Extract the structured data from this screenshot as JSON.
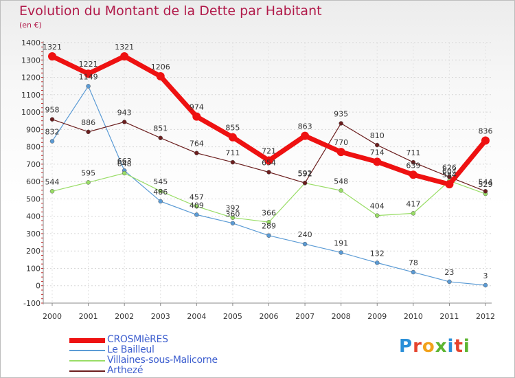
{
  "title": "Evolution du Montant de la Dette par Habitant",
  "unit_label": "(en €)",
  "logo_text": "Proxiti",
  "logo_colors": [
    "#2a8fd8",
    "#e5432d",
    "#f2a21b",
    "#5cb531",
    "#2a8fd8",
    "#e5432d",
    "#5cb531"
  ],
  "chart_data": {
    "type": "line",
    "title": "Evolution du Montant de la Dette par Habitant",
    "ylabel": "(en €)",
    "xlabel": "",
    "x": [
      "2000",
      "2001",
      "2002",
      "2003",
      "2004",
      "2005",
      "2006",
      "2007",
      "2008",
      "2009",
      "2010",
      "2011",
      "2012"
    ],
    "ylim": [
      -100,
      1400
    ],
    "yticks": [
      -100,
      0,
      100,
      200,
      300,
      400,
      500,
      600,
      700,
      800,
      900,
      1000,
      1100,
      1200,
      1300,
      1400
    ],
    "grid": true,
    "legend_position": "bottom-left",
    "series": [
      {
        "name": "CROSMIèRES",
        "color": "#ee1111",
        "width": 7,
        "values": [
          1321,
          1221,
          1321,
          1206,
          974,
          855,
          721,
          863,
          770,
          714,
          639,
          584,
          836
        ]
      },
      {
        "name": "Le Bailleul",
        "color": "#5b9bd5",
        "width": 1.2,
        "values": [
          832,
          1149,
          663,
          486,
          409,
          360,
          289,
          240,
          191,
          132,
          78,
          23,
          3
        ]
      },
      {
        "name": "Villaines-sous-Malicorne",
        "color": "#99dd66",
        "width": 1.2,
        "values": [
          544,
          595,
          648,
          545,
          457,
          392,
          366,
          591,
          548,
          404,
          417,
          604,
          529
        ]
      },
      {
        "name": "Arthezé",
        "color": "#6b1e1e",
        "width": 1.2,
        "values": [
          958,
          886,
          943,
          851,
          764,
          711,
          654,
          592,
          935,
          810,
          711,
          626,
          544
        ]
      }
    ]
  }
}
